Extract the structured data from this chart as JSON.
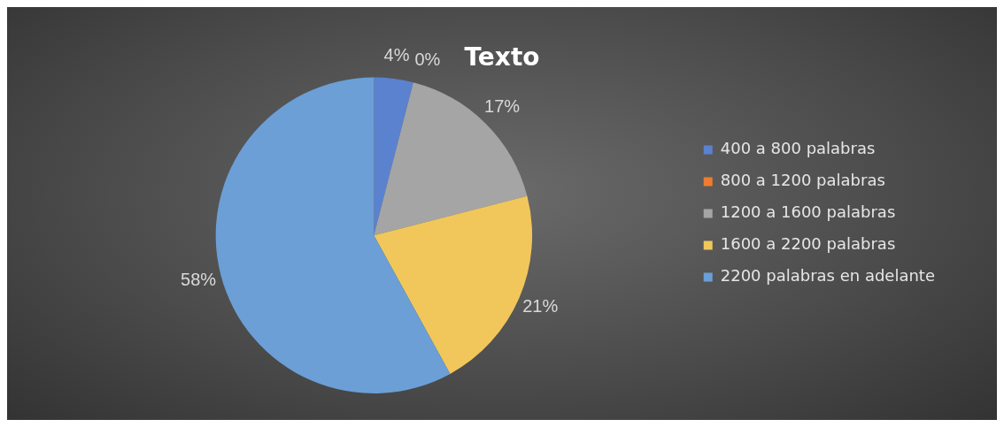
{
  "chart_data": {
    "type": "pie",
    "title": "Texto",
    "categories": [
      "400 a 800 palabras",
      "800 a 1200 palabras",
      "1200 a 1600 palabras",
      "1600 a 2200 palabras",
      "2200 palabras en adelante"
    ],
    "values": [
      4,
      0,
      17,
      21,
      58
    ],
    "colors": [
      "#5b82cf",
      "#ed7d31",
      "#a5a5a5",
      "#f1c75c",
      "#6b9fd6"
    ],
    "value_labels": [
      "4%",
      "0%",
      "17%",
      "21%",
      "58%"
    ],
    "legend": "right"
  }
}
